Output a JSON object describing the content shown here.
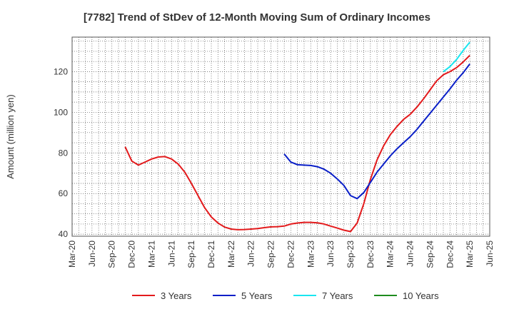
{
  "chart_data": {
    "type": "line",
    "title": "[7782]  Trend of StDev of 12-Month Moving Sum of Ordinary Incomes",
    "ylabel": "Amount (million yen)",
    "xlabel": "",
    "x_ticks": [
      "Mar-20",
      "Jun-20",
      "Sep-20",
      "Dec-20",
      "Mar-21",
      "Jun-21",
      "Sep-21",
      "Dec-21",
      "Mar-22",
      "Jun-22",
      "Sep-22",
      "Dec-22",
      "Mar-23",
      "Jun-23",
      "Sep-23",
      "Dec-23",
      "Mar-24",
      "Jun-24",
      "Sep-24",
      "Dec-24",
      "Mar-25",
      "Jun-25"
    ],
    "y_ticks": [
      40,
      60,
      80,
      100,
      120
    ],
    "ylim": [
      39,
      137
    ],
    "x_range": [
      "2020-03",
      "2025-06"
    ],
    "grid": true,
    "legend_position": "bottom",
    "series": [
      {
        "name": "3 Years",
        "color": "#e31a1c",
        "points": [
          [
            "2020-11",
            83
          ],
          [
            "2020-12",
            76
          ],
          [
            "2021-01",
            74
          ],
          [
            "2021-02",
            75.5
          ],
          [
            "2021-03",
            77
          ],
          [
            "2021-04",
            78
          ],
          [
            "2021-05",
            78.2
          ],
          [
            "2021-06",
            77
          ],
          [
            "2021-07",
            74.5
          ],
          [
            "2021-08",
            70.5
          ],
          [
            "2021-09",
            65
          ],
          [
            "2021-10",
            59
          ],
          [
            "2021-11",
            53
          ],
          [
            "2021-12",
            48.5
          ],
          [
            "2022-01",
            45.5
          ],
          [
            "2022-02",
            43.5
          ],
          [
            "2022-03",
            42.5
          ],
          [
            "2022-04",
            42.2
          ],
          [
            "2022-05",
            42.3
          ],
          [
            "2022-06",
            42.5
          ],
          [
            "2022-07",
            42.8
          ],
          [
            "2022-08",
            43.2
          ],
          [
            "2022-09",
            43.6
          ],
          [
            "2022-10",
            43.7
          ],
          [
            "2022-11",
            44
          ],
          [
            "2022-12",
            45
          ],
          [
            "2023-01",
            45.5
          ],
          [
            "2023-02",
            45.8
          ],
          [
            "2023-03",
            45.8
          ],
          [
            "2023-04",
            45.6
          ],
          [
            "2023-05",
            45
          ],
          [
            "2023-06",
            44
          ],
          [
            "2023-07",
            43
          ],
          [
            "2023-08",
            42
          ],
          [
            "2023-09",
            41.3
          ],
          [
            "2023-10",
            45.5
          ],
          [
            "2023-11",
            55
          ],
          [
            "2023-12",
            67
          ],
          [
            "2024-01",
            76.5
          ],
          [
            "2024-02",
            83.5
          ],
          [
            "2024-03",
            89
          ],
          [
            "2024-04",
            93
          ],
          [
            "2024-05",
            96.5
          ],
          [
            "2024-06",
            99
          ],
          [
            "2024-07",
            102.5
          ],
          [
            "2024-08",
            106.5
          ],
          [
            "2024-09",
            111
          ],
          [
            "2024-10",
            115.5
          ],
          [
            "2024-11",
            118.5
          ],
          [
            "2024-12",
            120
          ],
          [
            "2025-01",
            122
          ],
          [
            "2025-02",
            124.8
          ],
          [
            "2025-03",
            128
          ]
        ]
      },
      {
        "name": "5 Years",
        "color": "#0a1fc8",
        "points": [
          [
            "2022-11",
            79.5
          ],
          [
            "2022-12",
            75.5
          ],
          [
            "2023-01",
            74.2
          ],
          [
            "2023-02",
            74
          ],
          [
            "2023-03",
            73.8
          ],
          [
            "2023-04",
            73.2
          ],
          [
            "2023-05",
            72
          ],
          [
            "2023-06",
            70
          ],
          [
            "2023-07",
            67.2
          ],
          [
            "2023-08",
            64
          ],
          [
            "2023-09",
            59
          ],
          [
            "2023-10",
            57.5
          ],
          [
            "2023-11",
            60.5
          ],
          [
            "2023-12",
            65.5
          ],
          [
            "2024-01",
            70.5
          ],
          [
            "2024-02",
            74.5
          ],
          [
            "2024-03",
            78.5
          ],
          [
            "2024-04",
            82
          ],
          [
            "2024-05",
            85
          ],
          [
            "2024-06",
            88
          ],
          [
            "2024-07",
            91.5
          ],
          [
            "2024-08",
            95.5
          ],
          [
            "2024-09",
            99.5
          ],
          [
            "2024-10",
            103.5
          ],
          [
            "2024-11",
            107.5
          ],
          [
            "2024-12",
            111.5
          ],
          [
            "2025-01",
            115.8
          ],
          [
            "2025-02",
            119.5
          ],
          [
            "2025-03",
            123.8
          ]
        ]
      },
      {
        "name": "7 Years",
        "color": "#19e6f0",
        "points": [
          [
            "2024-11",
            120
          ],
          [
            "2024-12",
            122.5
          ],
          [
            "2025-01",
            126
          ],
          [
            "2025-02",
            130.5
          ],
          [
            "2025-03",
            134.5
          ]
        ]
      },
      {
        "name": "10 Years",
        "color": "#1e8c1e",
        "points": []
      }
    ]
  }
}
